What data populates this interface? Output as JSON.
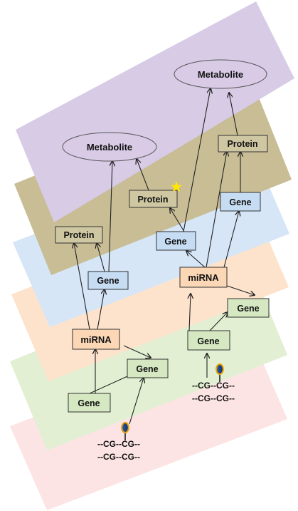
{
  "diagram": {
    "layers": [
      {
        "name": "dna-methylation",
        "color": "#fde4e4"
      },
      {
        "name": "gene",
        "color": "#e2efd2"
      },
      {
        "name": "mirna",
        "color": "#fde3cc"
      },
      {
        "name": "gene-expression",
        "color": "#d6e6f7"
      },
      {
        "name": "protein",
        "color": "#c8bd95"
      },
      {
        "name": "metabolite",
        "color": "#d7cbe6"
      }
    ],
    "colors": {
      "gene_fill": "#d5e8c2",
      "gene_blue_fill": "#c6dcf3",
      "mirna_fill": "#fbd7b6",
      "protein_fill": "#cfc7a2",
      "metabolite_fill": "#d9cbe6",
      "star": "#ffe600"
    },
    "nodes": {
      "metabolite_left": "Metabolite",
      "metabolite_right": "Metabolite",
      "protein_left": "Protein",
      "protein_mid": "Protein",
      "protein_right": "Protein",
      "gene_blue_left": "Gene",
      "gene_blue_mid": "Gene",
      "gene_blue_right": "Gene",
      "mirna_left": "miRNA",
      "mirna_right": "miRNA",
      "gene_green_left_bottom": "Gene",
      "gene_green_left_mid": "Gene",
      "gene_green_right_bottom": "Gene",
      "gene_green_right_top": "Gene"
    },
    "dna": {
      "left_line1": "--CG--CG--",
      "left_line2": "--CG--CG--",
      "right_line1": "--CG--CG--",
      "right_line2": "--CG--CG--"
    }
  }
}
